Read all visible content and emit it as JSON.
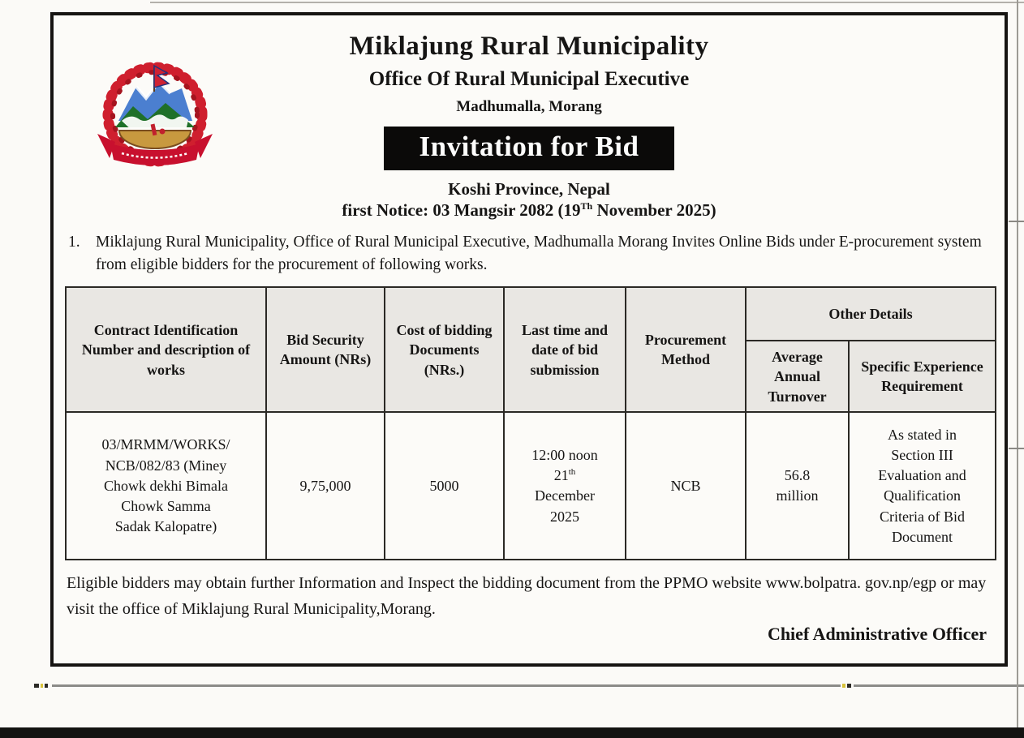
{
  "document": {
    "logo": "nepal-coat-of-arms-emblem",
    "org_name": "Miklajung Rural Municipality",
    "office_name": "Office Of Rural Municipal Executive",
    "location": "Madhumalla, Morang",
    "banner_title": "Invitation for Bid",
    "province_line": "Koshi Province, Nepal",
    "notice_line": {
      "prefix": "first Notice: 03 Mangsir 2082 (19",
      "superscript": "Th",
      "suffix": " November 2025)"
    },
    "intro_item": {
      "number": "1.",
      "text": "Miklajung Rural Municipality, Office of Rural Municipal Executive, Madhumalla Morang Invites Online Bids under E-procurement system from eligible bidders for the procurement of following works."
    }
  },
  "table": {
    "headers": {
      "contract": "Contract Identification Number and description of works",
      "bid_security": "Bid Security Amount (NRs)",
      "cost": "Cost of bidding Documents (NRs.)",
      "submission": "Last time and date of bid submission",
      "method": "Procurement Method",
      "other_details": "Other Details",
      "turnover": "Average Annual Turnover",
      "experience": "Specific Experience Requirement"
    },
    "row": {
      "contract_lines": [
        "03/MRMM/WORKS/",
        "NCB/082/83 (Miney",
        "Chowk dekhi Bimala",
        "Chowk Samma",
        "Sadak Kalopatre)"
      ],
      "bid_security": "9,75,000",
      "cost": "5000",
      "submission": {
        "time": "12:00 noon",
        "day": "21",
        "day_suffix": "th",
        "month": "December",
        "year": "2025"
      },
      "method": "NCB",
      "turnover": "56.8 million",
      "experience_lines": [
        "As stated in",
        "Section III",
        "Evaluation and",
        "Qualification",
        "Criteria of Bid",
        "Document"
      ]
    }
  },
  "footer": {
    "note": "Eligible bidders may obtain further Information and Inspect the bidding document from the PPMO website www.bolpatra. gov.np/egp or may visit the office of Miklajung Rural Municipality,Morang.",
    "signature": "Chief Administrative Officer"
  }
}
